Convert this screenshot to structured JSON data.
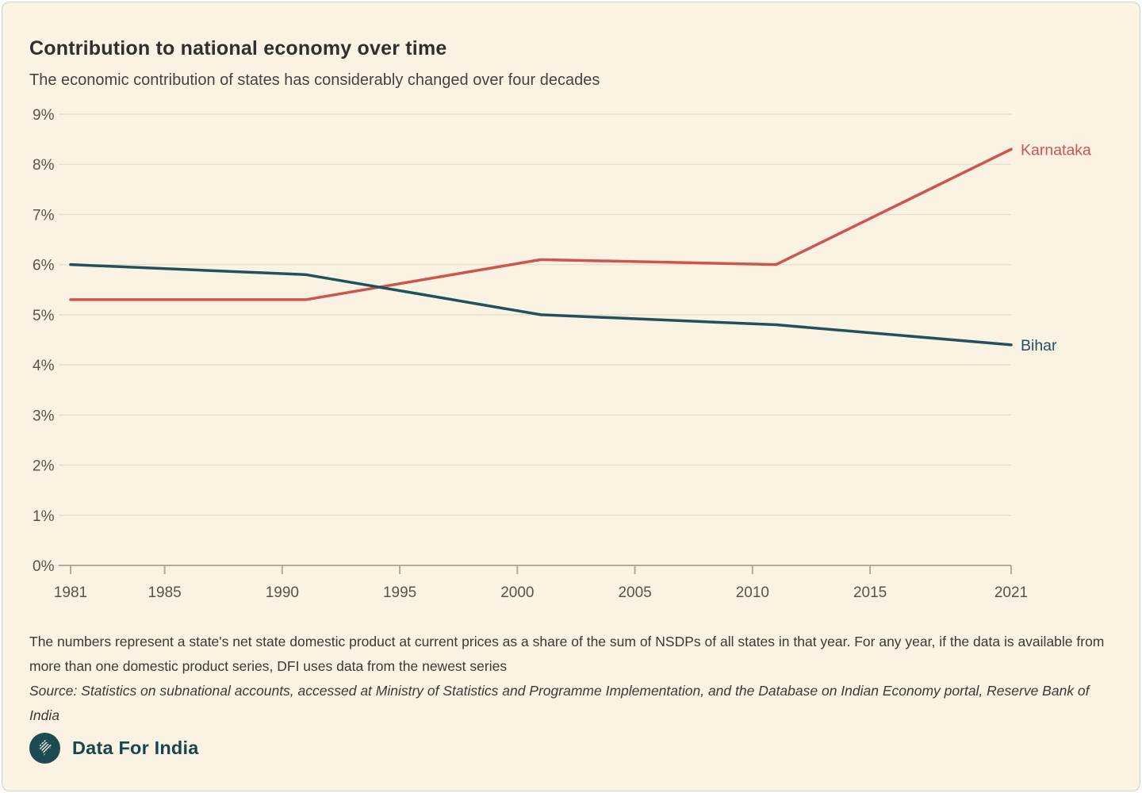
{
  "header": {
    "title": "Contribution to national economy over time",
    "subtitle": "The economic contribution of states has considerably changed over four decades"
  },
  "chart_data": {
    "type": "line",
    "x": [
      1981,
      1991,
      2001,
      2011,
      2021
    ],
    "series": [
      {
        "name": "Karnataka",
        "color": "#d0544e",
        "values": [
          5.3,
          5.3,
          6.1,
          6.0,
          8.3
        ]
      },
      {
        "name": "Bihar",
        "color": "#23505f",
        "values": [
          6.0,
          5.8,
          5.0,
          4.8,
          4.4
        ]
      }
    ],
    "x_ticks": [
      1981,
      1985,
      1990,
      1995,
      2000,
      2005,
      2010,
      2015,
      2021
    ],
    "y_ticks": [
      0,
      1,
      2,
      3,
      4,
      5,
      6,
      7,
      8,
      9
    ],
    "y_tick_suffix": "%",
    "xlim": [
      1981,
      2021
    ],
    "ylim": [
      0,
      9
    ],
    "grid": "horizontal",
    "legend_position": "line-end-labels",
    "title": "Contribution to national economy over time",
    "xlabel": "",
    "ylabel": ""
  },
  "footnote": {
    "text": "The numbers represent a state's net state domestic product at current prices as a share of the sum of NSDPs of all states in that year. For any year, if the data is available from more than one domestic product series, DFI uses data from the newest series"
  },
  "source": {
    "text": "Source: Statistics on subnational accounts, accessed at Ministry of Statistics and Programme Implementation, and the Database on Indian Economy portal, Reserve Bank of India"
  },
  "logo": {
    "text": "Data For India"
  },
  "colors": {
    "card_background": "#faf3e3",
    "card_border": "#d2cfc9",
    "gridline": "#e8e0ce",
    "axis_line": "#b2ab9c",
    "axis_label": "#585349",
    "karnataka_red": "#d0544e",
    "bihar_teal": "#23505f",
    "logo_teal": "#1d4b52"
  }
}
